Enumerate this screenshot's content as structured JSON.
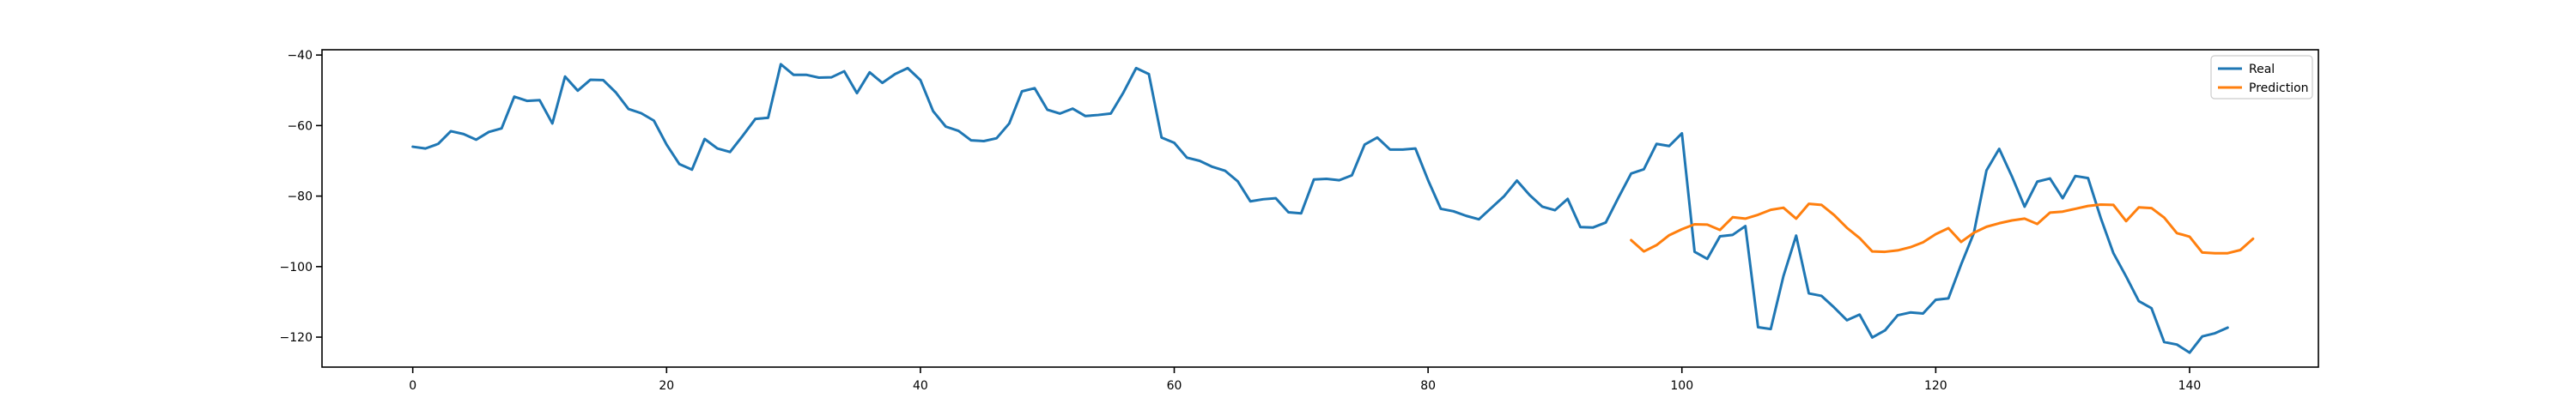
{
  "chart_data": {
    "type": "line",
    "title": "",
    "xlabel": "",
    "ylabel": "",
    "xlim": [
      -7.15,
      150.15
    ],
    "ylim": [
      -128.5,
      -38.5
    ],
    "xticks": [
      0,
      20,
      40,
      60,
      80,
      100,
      120,
      140
    ],
    "yticks": [
      -120,
      -100,
      -80,
      -60,
      -40
    ],
    "grid": false,
    "legend_position": "top-right",
    "series": [
      {
        "name": "Real",
        "color": "#1f77b4",
        "x_start": 0,
        "values": [
          -66,
          -66.5,
          -65.2,
          -61.6,
          -62.4,
          -64,
          -61.8,
          -60.8,
          -51.8,
          -53,
          -52.8,
          -59.4,
          -46.1,
          -50.1,
          -47,
          -47.1,
          -50.6,
          -55.3,
          -56.5,
          -58.6,
          -65.4,
          -70.9,
          -72.5,
          -63.8,
          -66.5,
          -67.5,
          -62.9,
          -58.1,
          -57.8,
          -42.6,
          -45.6,
          -45.6,
          -46.4,
          -46.3,
          -44.6,
          -50.8,
          -44.9,
          -47.9,
          -45.4,
          -43.7,
          -47.1,
          -55.9,
          -60.3,
          -61.5,
          -64.2,
          -64.4,
          -63.6,
          -59.4,
          -50.3,
          -49.4,
          -55.5,
          -56.6,
          -55.2,
          -57.3,
          -57,
          -56.6,
          -50.6,
          -43.7,
          -45.4,
          -63.4,
          -64.9,
          -69.1,
          -70,
          -71.7,
          -72.8,
          -75.8,
          -81.5,
          -80.9,
          -80.6,
          -84.6,
          -84.9,
          -75.3,
          -75.1,
          -75.5,
          -74.1,
          -65.4,
          -63.4,
          -66.8,
          -66.8,
          -66.5,
          -75.5,
          -83.6,
          -84.3,
          -85.6,
          -86.6,
          -83.3,
          -80,
          -75.6,
          -79.7,
          -83,
          -84,
          -80.8,
          -88.8,
          -88.9,
          -87.5,
          -80.4,
          -73.6,
          -72.4,
          -65.2,
          -65.8,
          -62.2,
          -95.8,
          -97.8,
          -91.4,
          -91,
          -88.5,
          -117.2,
          -117.7,
          -102.7,
          -91.2,
          -107.6,
          -108.3,
          -111.6,
          -115.2,
          -113.6,
          -120.1,
          -118.1,
          -113.8,
          -113,
          -113.3,
          -109.4,
          -109,
          -99.4,
          -90.5,
          -72.7,
          -66.6,
          -74.4,
          -83,
          -75.9,
          -75,
          -80.6,
          -74.3,
          -74.9,
          -86.2,
          -96.2,
          -102.8,
          -109.8,
          -111.8,
          -121.4,
          -122.1,
          -124.4,
          -119.8,
          -118.9,
          -117.3
        ]
      },
      {
        "name": "Prediction",
        "color": "#ff7f0e",
        "x_start": 96,
        "values": [
          -92.5,
          -95.7,
          -93.9,
          -91.1,
          -89.4,
          -88,
          -88.1,
          -89.6,
          -86,
          -86.4,
          -85.3,
          -83.9,
          -83.3,
          -86.4,
          -82.2,
          -82.5,
          -85.4,
          -89,
          -91.9,
          -95.7,
          -95.8,
          -95.4,
          -94.5,
          -93.1,
          -90.8,
          -89.1,
          -93,
          -90.4,
          -88.7,
          -87.7,
          -86.9,
          -86.4,
          -87.9,
          -84.7,
          -84.4,
          -83.6,
          -82.8,
          -82.4,
          -82.5,
          -87.1,
          -83.2,
          -83.4,
          -86.1,
          -90.5,
          -91.5,
          -96,
          -96.2,
          -96.2,
          -95.3,
          -92.1
        ]
      }
    ]
  }
}
